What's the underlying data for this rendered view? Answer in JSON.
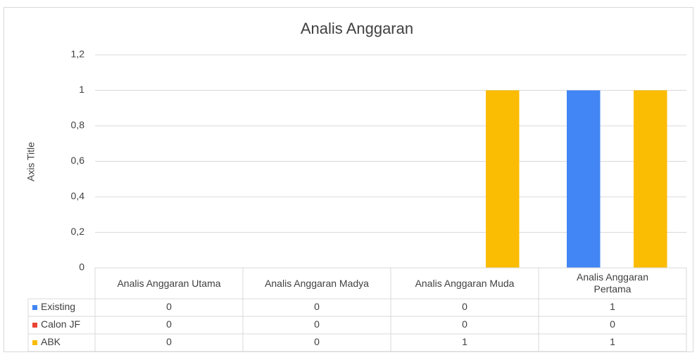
{
  "chart_data": {
    "type": "bar",
    "title": "Analis Anggaran",
    "y_label": "Axis Title",
    "categories": [
      "Analis Anggaran Utama",
      "Analis Anggaran Madya",
      "Analis Anggaran Muda",
      "Analis Anggaran Pertama"
    ],
    "series": [
      {
        "name": "Existing",
        "color": "#4285f4",
        "values": [
          0,
          0,
          0,
          1
        ]
      },
      {
        "name": "Calon JF",
        "color": "#ea4335",
        "values": [
          0,
          0,
          0,
          0
        ]
      },
      {
        "name": "ABK",
        "color": "#fbbc04",
        "values": [
          0,
          0,
          1,
          1
        ]
      }
    ],
    "ylim": [
      0,
      1.2
    ],
    "yticks": [
      0,
      {
        "value": 0.2,
        "label": "0,2"
      },
      {
        "value": 0.4,
        "label": "0,4"
      },
      {
        "value": 0.6,
        "label": "0,6"
      },
      {
        "value": 0.8,
        "label": "0,8"
      },
      1,
      {
        "value": 1.2,
        "label": "1,2"
      }
    ],
    "grid": true,
    "data_table": true
  }
}
